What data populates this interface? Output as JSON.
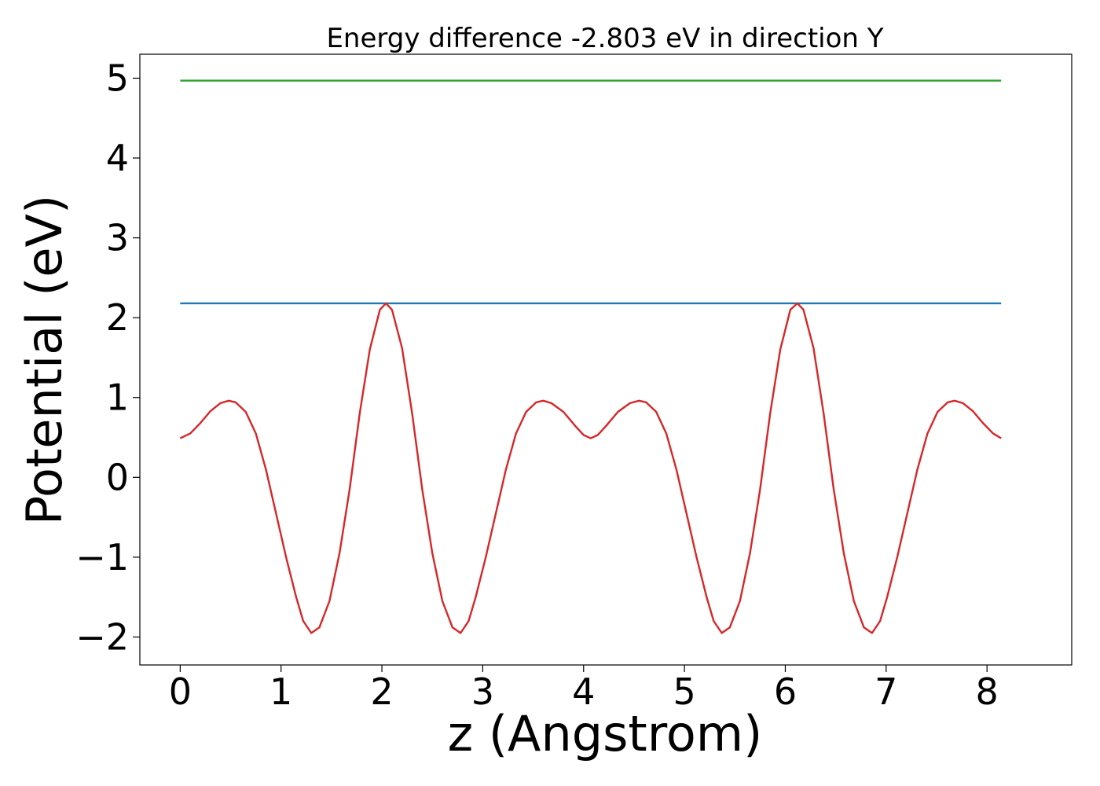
{
  "chart_data": {
    "type": "line",
    "title": "Energy difference -2.803 eV in direction Y",
    "xlabel": "z (Angstrom)",
    "ylabel": "Potential (eV)",
    "xlim": [
      -0.4,
      8.84
    ],
    "ylim": [
      -2.35,
      5.3
    ],
    "xticks": [
      0,
      1,
      2,
      3,
      4,
      5,
      6,
      7,
      8
    ],
    "yticks": [
      -2,
      -1,
      0,
      1,
      2,
      3,
      4,
      5
    ],
    "xtick_labels": [
      "0",
      "1",
      "2",
      "3",
      "4",
      "5",
      "6",
      "7",
      "8"
    ],
    "ytick_labels": [
      "−2",
      "−1",
      "0",
      "1",
      "2",
      "3",
      "4",
      "5"
    ],
    "grid": false,
    "series": [
      {
        "color": "#2ca02c",
        "points": [
          [
            0,
            4.97
          ],
          [
            8.14,
            4.97
          ]
        ]
      },
      {
        "color": "#1f77b4",
        "points": [
          [
            0,
            2.18
          ],
          [
            8.14,
            2.18
          ]
        ]
      },
      {
        "color": "#d62728",
        "points": [
          [
            0.0,
            0.49
          ],
          [
            0.1,
            0.55
          ],
          [
            0.2,
            0.68
          ],
          [
            0.3,
            0.83
          ],
          [
            0.4,
            0.93
          ],
          [
            0.48,
            0.96
          ],
          [
            0.55,
            0.94
          ],
          [
            0.65,
            0.82
          ],
          [
            0.75,
            0.55
          ],
          [
            0.85,
            0.1
          ],
          [
            0.95,
            -0.45
          ],
          [
            1.05,
            -1.0
          ],
          [
            1.15,
            -1.5
          ],
          [
            1.22,
            -1.8
          ],
          [
            1.3,
            -1.95
          ],
          [
            1.38,
            -1.88
          ],
          [
            1.48,
            -1.55
          ],
          [
            1.58,
            -0.95
          ],
          [
            1.68,
            -0.15
          ],
          [
            1.78,
            0.8
          ],
          [
            1.88,
            1.6
          ],
          [
            1.98,
            2.1
          ],
          [
            2.04,
            2.18
          ],
          [
            2.1,
            2.1
          ],
          [
            2.2,
            1.62
          ],
          [
            2.3,
            0.8
          ],
          [
            2.4,
            -0.15
          ],
          [
            2.5,
            -0.95
          ],
          [
            2.6,
            -1.55
          ],
          [
            2.7,
            -1.88
          ],
          [
            2.78,
            -1.95
          ],
          [
            2.86,
            -1.8
          ],
          [
            2.93,
            -1.5
          ],
          [
            3.03,
            -1.0
          ],
          [
            3.13,
            -0.45
          ],
          [
            3.23,
            0.1
          ],
          [
            3.33,
            0.55
          ],
          [
            3.43,
            0.82
          ],
          [
            3.53,
            0.94
          ],
          [
            3.6,
            0.96
          ],
          [
            3.68,
            0.93
          ],
          [
            3.8,
            0.82
          ],
          [
            3.92,
            0.64
          ],
          [
            4.0,
            0.53
          ],
          [
            4.07,
            0.49
          ],
          [
            4.14,
            0.53
          ],
          [
            4.22,
            0.64
          ],
          [
            4.34,
            0.82
          ],
          [
            4.46,
            0.93
          ],
          [
            4.55,
            0.96
          ],
          [
            4.62,
            0.94
          ],
          [
            4.72,
            0.82
          ],
          [
            4.82,
            0.55
          ],
          [
            4.92,
            0.1
          ],
          [
            5.02,
            -0.45
          ],
          [
            5.12,
            -1.0
          ],
          [
            5.22,
            -1.5
          ],
          [
            5.29,
            -1.8
          ],
          [
            5.37,
            -1.95
          ],
          [
            5.45,
            -1.88
          ],
          [
            5.55,
            -1.55
          ],
          [
            5.65,
            -0.95
          ],
          [
            5.75,
            -0.15
          ],
          [
            5.85,
            0.8
          ],
          [
            5.95,
            1.6
          ],
          [
            6.05,
            2.1
          ],
          [
            6.12,
            2.18
          ],
          [
            6.18,
            2.1
          ],
          [
            6.28,
            1.62
          ],
          [
            6.38,
            0.8
          ],
          [
            6.48,
            -0.15
          ],
          [
            6.58,
            -0.95
          ],
          [
            6.68,
            -1.55
          ],
          [
            6.78,
            -1.88
          ],
          [
            6.86,
            -1.95
          ],
          [
            6.94,
            -1.8
          ],
          [
            7.01,
            -1.5
          ],
          [
            7.11,
            -1.0
          ],
          [
            7.21,
            -0.45
          ],
          [
            7.31,
            0.1
          ],
          [
            7.41,
            0.55
          ],
          [
            7.51,
            0.82
          ],
          [
            7.61,
            0.94
          ],
          [
            7.68,
            0.96
          ],
          [
            7.76,
            0.93
          ],
          [
            7.86,
            0.83
          ],
          [
            7.96,
            0.68
          ],
          [
            8.06,
            0.55
          ],
          [
            8.14,
            0.49
          ]
        ]
      }
    ]
  }
}
